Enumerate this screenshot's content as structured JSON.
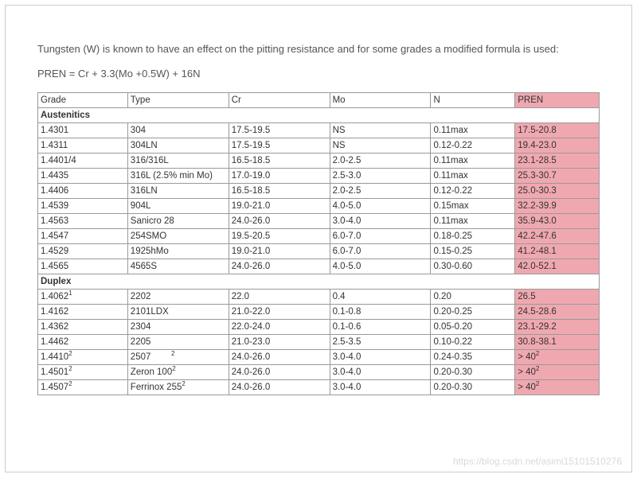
{
  "intro_text": "Tungsten (W) is known to have an effect on the pitting resistance and for some grades a modified formula is used:",
  "formula_text": "PREN = Cr + 3.3(Mo +0.5W) + 16N",
  "columns": [
    "Grade",
    "Type",
    "Cr",
    "Mo",
    "N",
    "PREN"
  ],
  "section1_title": "Austenitics",
  "section2_title": "Duplex",
  "austenitics": [
    {
      "grade": "1.4301",
      "type": "304",
      "cr": "17.5-19.5",
      "mo": "NS",
      "n": "0.11max",
      "pren": "17.5-20.8"
    },
    {
      "grade": "1.4311",
      "type": "304LN",
      "cr": "17.5-19.5",
      "mo": "NS",
      "n": "0.12-0.22",
      "pren": "19.4-23.0"
    },
    {
      "grade": "1.4401/4",
      "type": "316/316L",
      "cr": "16.5-18.5",
      "mo": "2.0-2.5",
      "n": "0.11max",
      "pren": "23.1-28.5"
    },
    {
      "grade": "1.4435",
      "type": "316L (2.5% min Mo)",
      "cr": "17.0-19.0",
      "mo": "2.5-3.0",
      "n": "0.11max",
      "pren": "25.3-30.7"
    },
    {
      "grade": "1.4406",
      "type": "316LN",
      "cr": "16.5-18.5",
      "mo": "2.0-2.5",
      "n": "0.12-0.22",
      "pren": "25.0-30.3"
    },
    {
      "grade": "1.4539",
      "type": "904L",
      "cr": "19.0-21.0",
      "mo": "4.0-5.0",
      "n": "0.15max",
      "pren": "32.2-39.9"
    },
    {
      "grade": "1.4563",
      "type": "Sanicro 28",
      "cr": "24.0-26.0",
      "mo": "3.0-4.0",
      "n": "0.11max",
      "pren": "35.9-43.0"
    },
    {
      "grade": "1.4547",
      "type": "254SMO",
      "cr": "19.5-20.5",
      "mo": "6.0-7.0",
      "n": "0.18-0.25",
      "pren": "42.2-47.6"
    },
    {
      "grade": "1.4529",
      "type": "1925hMo",
      "cr": "19.0-21.0",
      "mo": "6.0-7.0",
      "n": "0.15-0.25",
      "pren": "41.2-48.1"
    },
    {
      "grade": "1.4565",
      "type": "4565S",
      "cr": "24.0-26.0",
      "mo": "4.0-5.0",
      "n": "0.30-0.60",
      "pren": "42.0-52.1"
    }
  ],
  "duplex": [
    {
      "grade": "1.4062",
      "grade_sup": "1",
      "type": "2202",
      "type_sup": "",
      "cr": "22.0",
      "mo": "0.4",
      "n": "0.20",
      "pren": "26.5",
      "pren_sup": ""
    },
    {
      "grade": "1.4162",
      "grade_sup": "",
      "type": "2101LDX",
      "type_sup": "",
      "cr": "21.0-22.0",
      "mo": "0.1-0.8",
      "n": "0.20-0.25",
      "pren": "24.5-28.6",
      "pren_sup": ""
    },
    {
      "grade": "1.4362",
      "grade_sup": "",
      "type": "2304",
      "type_sup": "",
      "cr": "22.0-24.0",
      "mo": "0.1-0.6",
      "n": "0.05-0.20",
      "pren": "23.1-29.2",
      "pren_sup": ""
    },
    {
      "grade": "1.4462",
      "grade_sup": "",
      "type": "2205",
      "type_sup": "",
      "cr": "21.0-23.0",
      "mo": "2.5-3.5",
      "n": "0.10-0.22",
      "pren": "30.8-38.1",
      "pren_sup": ""
    },
    {
      "grade": "1.4410",
      "grade_sup": "2",
      "type": "2507",
      "type_sup": "2",
      "type_gap": "        ",
      "cr": "24.0-26.0",
      "mo": "3.0-4.0",
      "n": "0.24-0.35",
      "pren": "> 40",
      "pren_sup": "2"
    },
    {
      "grade": "1.4501",
      "grade_sup": "2",
      "type": "Zeron 100",
      "type_sup": "2",
      "cr": "24.0-26.0",
      "mo": "3.0-4.0",
      "n": "0.20-0.30",
      "pren": "> 40",
      "pren_sup": "2"
    },
    {
      "grade": "1.4507",
      "grade_sup": "2",
      "type": "Ferrinox 255",
      "type_sup": "2",
      "cr": "24.0-26.0",
      "mo": "3.0-4.0",
      "n": "0.20-0.30",
      "pren": "> 40",
      "pren_sup": "2"
    }
  ],
  "watermark": "https://blog.csdn.net/asimi15101510276",
  "colors": {
    "pren_highlight": "#f0a8b0",
    "border": "#999999",
    "text": "#333333",
    "intro_text": "#555555"
  }
}
